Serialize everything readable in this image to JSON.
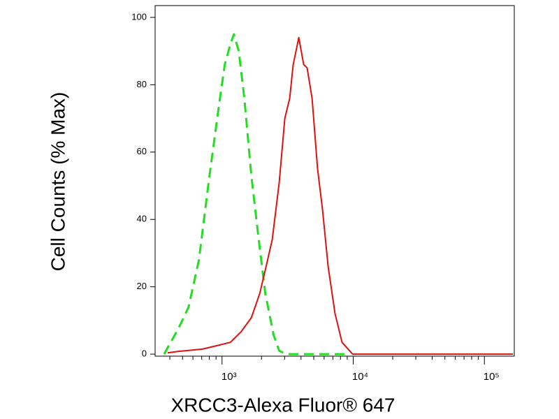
{
  "chart_data": {
    "type": "line",
    "y_label": "Cell Counts (% Max)",
    "x_label": "XRCC3-Alexa Fluor® 647",
    "xscale": "log",
    "xlim": [
      309,
      169000
    ],
    "ylim": [
      -0.6,
      103.5
    ],
    "xticks": [
      {
        "value": 1000,
        "label": "10³"
      },
      {
        "value": 10000,
        "label": "10⁴"
      },
      {
        "value": 100000,
        "label": "10⁵"
      }
    ],
    "minor_xticks": [
      400,
      500,
      600,
      700,
      800,
      900,
      2000,
      3000,
      4000,
      5000,
      6000,
      7000,
      8000,
      9000,
      20000,
      30000,
      40000,
      50000,
      60000,
      70000,
      80000,
      90000
    ],
    "yticks": [
      0,
      20,
      40,
      60,
      80,
      100
    ],
    "series": [
      {
        "color": "#22dd22",
        "dash": true,
        "x": [
          362,
          435,
          480,
          556,
          667,
          802,
          964,
          1050,
          1158,
          1231,
          1342,
          1479,
          1673,
          1891,
          2138,
          2477,
          2730,
          3086,
          9290
        ],
        "values": [
          0,
          5.6,
          8.7,
          14,
          28,
          53,
          76,
          86,
          92,
          95,
          90,
          76,
          53,
          35,
          18,
          5.6,
          1,
          0,
          0
        ]
      },
      {
        "color": "#e01010",
        "dash": false,
        "x": [
          385,
          462,
          710,
          906,
          1158,
          1393,
          1673,
          1937,
          2138,
          2415,
          2730,
          3012,
          3281,
          3488,
          3845,
          4190,
          4454,
          4855,
          5353,
          5834,
          6438,
          7273,
          8222,
          9880,
          165000
        ],
        "values": [
          0.4,
          0.8,
          1.5,
          2.5,
          3.5,
          6.6,
          10.8,
          18,
          25,
          34,
          51,
          70,
          76,
          86,
          94,
          86,
          85,
          76,
          55,
          43,
          26,
          12,
          3.5,
          0,
          0
        ]
      }
    ]
  }
}
